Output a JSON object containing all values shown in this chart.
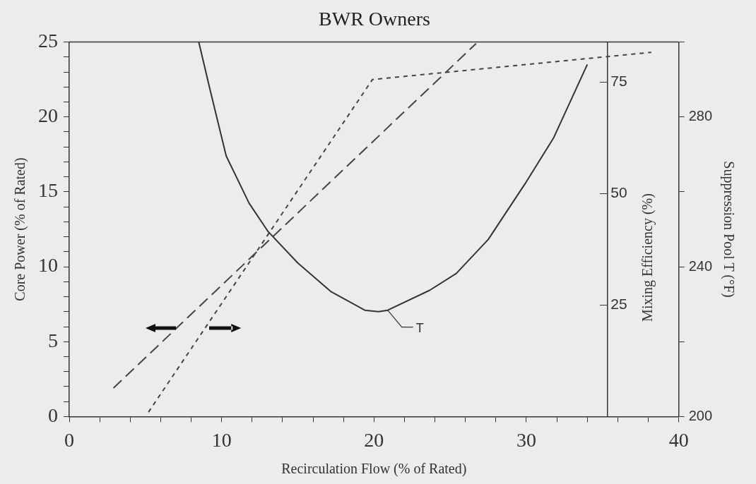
{
  "chart_data": {
    "type": "line",
    "title": "BWR Owners",
    "xlabel": "Recirculation Flow (% of Rated)",
    "ylabel": "Core Power (% of Rated)",
    "y2label": "Mixing Efficiency (%)",
    "y3label": "Suppression Pool T (°F)",
    "xlim": [
      0,
      40
    ],
    "xticks": [
      0,
      {
        "value": 2,
        "label": null
      },
      {
        "value": 4,
        "label": null
      },
      {
        "value": 6,
        "label": null
      },
      {
        "value": 8,
        "label": null
      },
      10,
      {
        "value": 12,
        "label": null
      },
      {
        "value": 14,
        "label": null
      },
      {
        "value": 16,
        "label": null
      },
      {
        "value": 18,
        "label": null
      },
      20,
      {
        "value": 22,
        "label": null
      },
      {
        "value": 24,
        "label": null
      },
      {
        "value": 26,
        "label": null
      },
      {
        "value": 28,
        "label": null
      },
      30,
      {
        "value": 32,
        "label": null
      },
      {
        "value": 34,
        "label": null
      },
      {
        "value": 36,
        "label": null
      },
      {
        "value": 38,
        "label": null
      },
      40
    ],
    "ylim": [
      0,
      25
    ],
    "yticks": [
      0,
      {
        "value": 1,
        "label": null
      },
      {
        "value": 2,
        "label": null
      },
      {
        "value": 3,
        "label": null
      },
      {
        "value": 4,
        "label": null
      },
      5,
      {
        "value": 6,
        "label": null
      },
      {
        "value": 7,
        "label": null
      },
      {
        "value": 8,
        "label": null
      },
      {
        "value": 9,
        "label": null
      },
      10,
      {
        "value": 11,
        "label": null
      },
      {
        "value": 12,
        "label": null
      },
      {
        "value": 13,
        "label": null
      },
      {
        "value": 14,
        "label": null
      },
      15,
      {
        "value": 16,
        "label": null
      },
      {
        "value": 17,
        "label": null
      },
      {
        "value": 18,
        "label": null
      },
      {
        "value": 19,
        "label": null
      },
      20,
      {
        "value": 21,
        "label": null
      },
      {
        "value": 22,
        "label": null
      },
      {
        "value": 23,
        "label": null
      },
      {
        "value": 24,
        "label": null
      },
      25
    ],
    "y2lim": [
      0,
      84
    ],
    "y2ticks": [
      25,
      50,
      75
    ],
    "y3lim": [
      200,
      300
    ],
    "y3ticks": [
      200,
      {
        "value": 220,
        "label": null
      },
      240,
      {
        "value": 260,
        "label": null
      },
      280,
      {
        "value": 300,
        "label": null
      }
    ],
    "grid": false,
    "legend": false,
    "marker": "none",
    "series": [
      {
        "name": "T",
        "axis": "y3",
        "color": "#333333",
        "line_style": "solid",
        "x": [
          8.5,
          9.24,
          10.3,
          11.8,
          13.05,
          15.0,
          17.2,
          19.4,
          20.3,
          20.9,
          23.65,
          25.4,
          27.5,
          30.0,
          31.8,
          34.0
        ],
        "values": [
          300,
          287.3,
          269.6,
          257,
          249.4,
          241,
          233.3,
          228.4,
          228,
          228.4,
          233.7,
          238.2,
          247.3,
          262.7,
          274.5,
          294
        ]
      },
      {
        "axis": "y2",
        "color": "#444444",
        "line_style": "dotted",
        "x": [
          5.2,
          19.9,
          38.2
        ],
        "values": [
          1,
          75.6,
          81.7
        ]
      },
      {
        "axis": "y",
        "color": "#444444",
        "line_style": "dashed",
        "x": [
          2.9,
          26.7
        ],
        "values": [
          1.9,
          24.9
        ]
      }
    ]
  }
}
